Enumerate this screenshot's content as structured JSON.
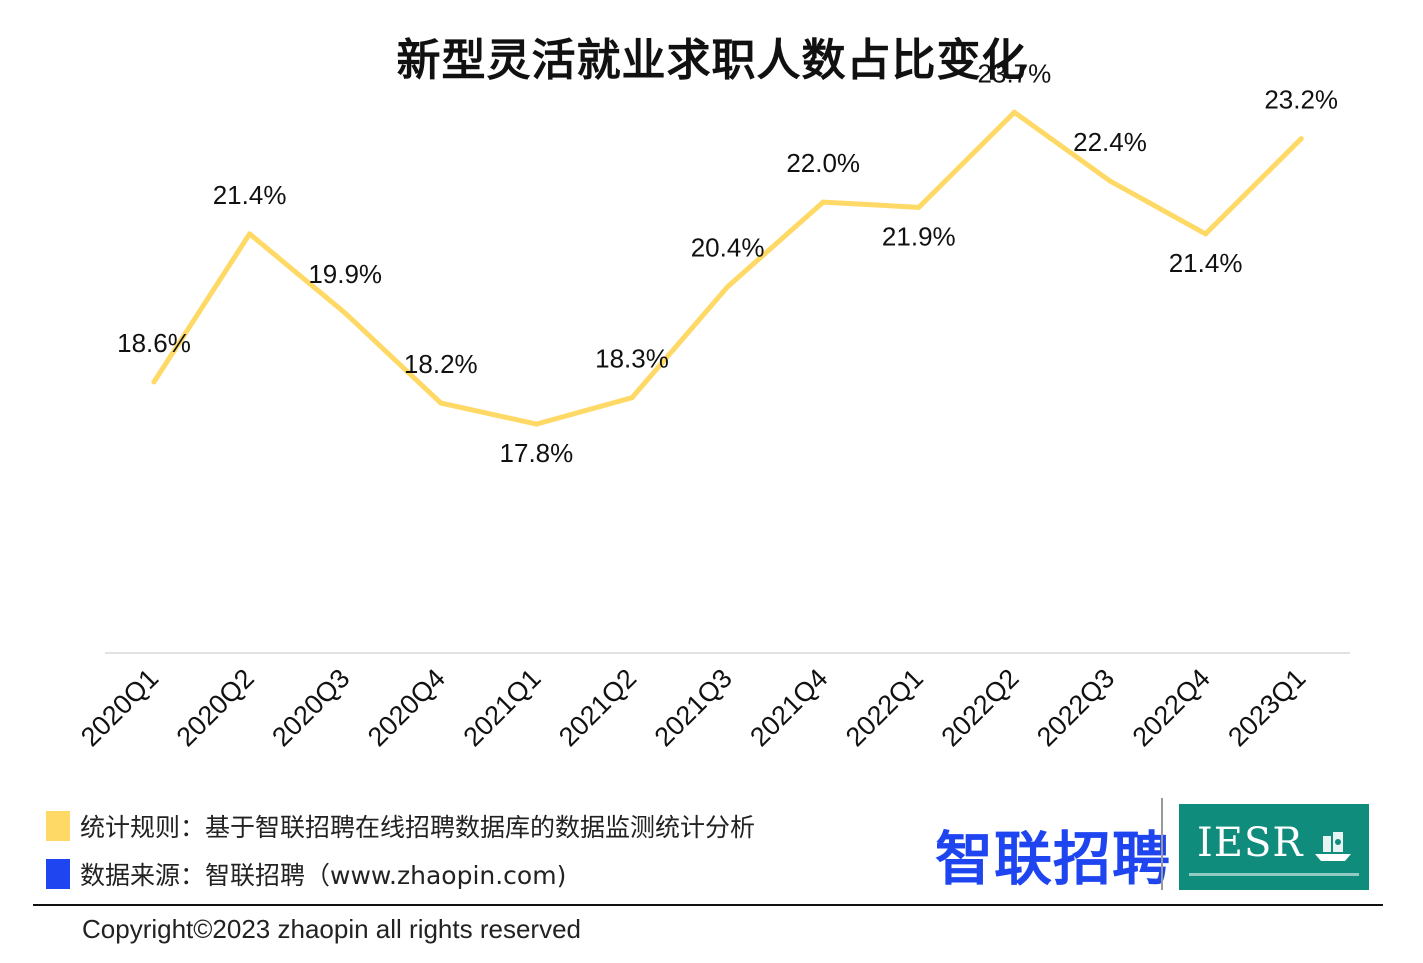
{
  "chart_data": {
    "type": "line",
    "title": "新型灵活就业求职人数占比变化",
    "categories": [
      "2020Q1",
      "2020Q2",
      "2020Q3",
      "2020Q4",
      "2021Q1",
      "2021Q2",
      "2021Q3",
      "2021Q4",
      "2022Q1",
      "2022Q2",
      "2022Q3",
      "2022Q4",
      "2023Q1"
    ],
    "values": [
      18.6,
      21.4,
      19.9,
      18.2,
      17.8,
      18.3,
      20.4,
      22.0,
      21.9,
      23.7,
      22.4,
      21.4,
      23.2
    ],
    "data_labels": [
      "18.6%",
      "21.4%",
      "19.9%",
      "18.2%",
      "17.8%",
      "18.3%",
      "20.4%",
      "22.0%",
      "21.9%",
      "23.7%",
      "22.4%",
      "21.4%",
      "23.2%"
    ],
    "ylim": [
      14.0,
      24.5
    ],
    "grid": false,
    "line_color": "#FFD966"
  },
  "notes": {
    "rule": "统计规则：基于智联招聘在线招聘数据库的数据监测统计分析",
    "rule_color": "#FFD966",
    "source": "数据来源：智联招聘（www.zhaopin.com)",
    "source_color": "#1F45F0"
  },
  "branding": {
    "zhaopin_logo": "智联招聘",
    "iesr_logo": "IESR"
  },
  "footer": {
    "copyright": "Copyright©2023 zhaopin all rights reserved"
  }
}
